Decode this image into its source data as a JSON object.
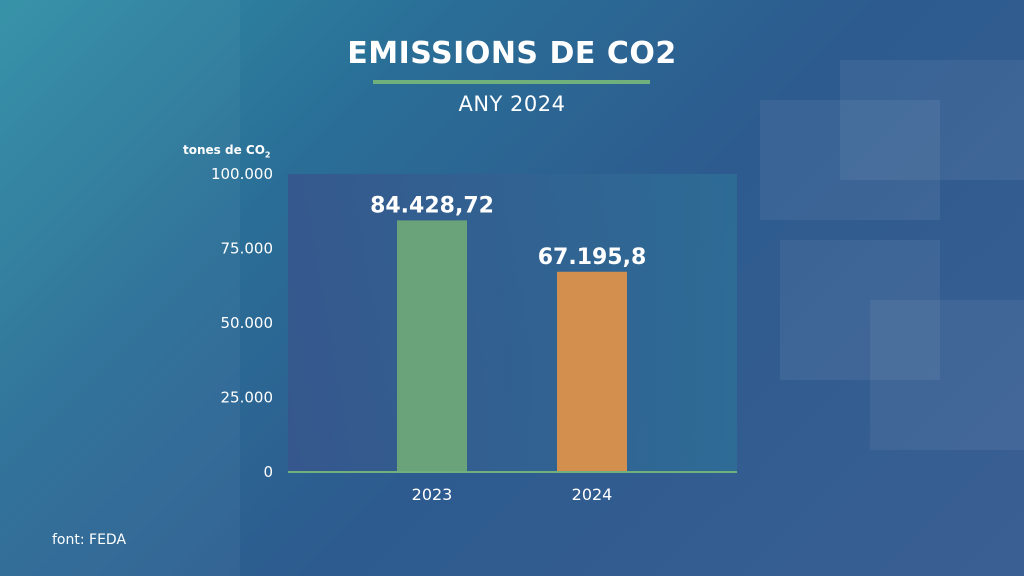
{
  "title": "EMISSIONS DE CO2",
  "subtitle": "ANY 2024",
  "unit": {
    "prefix": "tones de CO",
    "subscript": "2"
  },
  "source": "font: FEDA",
  "colors": {
    "accent": "#6fb07c",
    "bar_2023": "#6aa37a",
    "bar_2024": "#d38f4d"
  },
  "chart_data": {
    "type": "bar",
    "categories": [
      "2023",
      "2024"
    ],
    "values": [
      84428.72,
      67195.8
    ],
    "data_labels": [
      "84.428,72",
      "67.195,8"
    ],
    "ylim": [
      0,
      100000
    ],
    "yticks": [
      0,
      25000,
      50000,
      75000,
      100000
    ],
    "ytick_labels": [
      "0",
      "25.000",
      "50.000",
      "75.000",
      "100.000"
    ],
    "xlabel": "",
    "ylabel": "",
    "grid": false
  }
}
